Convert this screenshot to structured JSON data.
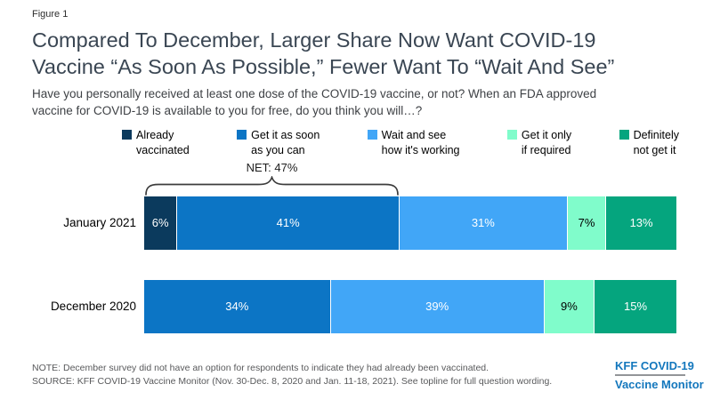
{
  "figure_label": "Figure 1",
  "title": {
    "lines": [
      "Compared To December, Larger Share Now Want COVID-19",
      "Vaccine “As Soon As Possible,” Fewer Want To “Wait And See”"
    ]
  },
  "subtitle": {
    "lines": [
      "Have you personally received at least one dose of the COVID-19 vaccine, or not? When an FDA approved",
      "vaccine for COVID-19 is available to you for free, do you think you will…?"
    ]
  },
  "colors": {
    "already_vaccinated": "#0b3a5d",
    "as_soon_as_possible": "#0c75c5",
    "wait_and_see": "#41a6f7",
    "only_if_required": "#80fccb",
    "definitely_not": "#05a57e",
    "title_text": "#3a4653",
    "note_text": "#58595b",
    "logo_blue": "#1377bd",
    "brace": "#3d3d3d"
  },
  "chart_data": {
    "type": "bar",
    "orientation": "horizontal_stacked",
    "value_unit": "percent",
    "axis_range": [
      0,
      100
    ],
    "grid": false,
    "legend_position": "top",
    "legend": [
      {
        "label": "Already\nvaccinated",
        "color": "#0b3a5d"
      },
      {
        "label": "Get it as soon\nas you can",
        "color": "#0c75c5"
      },
      {
        "label": "Wait and see\nhow it's working",
        "color": "#41a6f7"
      },
      {
        "label": "Get it only\nif required",
        "color": "#80fccb"
      },
      {
        "label": "Definitely\nnot get it",
        "color": "#05a57e"
      }
    ],
    "annotation": {
      "label": "NET: 47%",
      "row": "January 2021",
      "covers": [
        "Already vaccinated",
        "Get it as soon as you can"
      ]
    },
    "categories": [
      "January 2021",
      "December 2020"
    ],
    "rows": [
      {
        "label": "January 2021",
        "segments": [
          {
            "name": "Already vaccinated",
            "value": 6,
            "display": "6%",
            "color": "#0b3a5d",
            "text_color": "#ffffff"
          },
          {
            "name": "Get it as soon as you can",
            "value": 41,
            "display": "41%",
            "color": "#0c75c5",
            "text_color": "#ffffff"
          },
          {
            "name": "Wait and see how it's working",
            "value": 31,
            "display": "31%",
            "color": "#41a6f7",
            "text_color": "#ffffff"
          },
          {
            "name": "Get it only if required",
            "value": 7,
            "display": "7%",
            "color": "#80fccb",
            "text_color": "#000000"
          },
          {
            "name": "Definitely not get it",
            "value": 13,
            "display": "13%",
            "color": "#05a57e",
            "text_color": "#ffffff"
          }
        ]
      },
      {
        "label": "December 2020",
        "segments": [
          {
            "name": "Get it as soon as you can",
            "value": 34,
            "display": "34%",
            "color": "#0c75c5",
            "text_color": "#ffffff"
          },
          {
            "name": "Wait and see how it's working",
            "value": 39,
            "display": "39%",
            "color": "#41a6f7",
            "text_color": "#ffffff"
          },
          {
            "name": "Get it only if required",
            "value": 9,
            "display": "9%",
            "color": "#80fccb",
            "text_color": "#000000"
          },
          {
            "name": "Definitely not get it",
            "value": 15,
            "display": "15%",
            "color": "#05a57e",
            "text_color": "#ffffff"
          }
        ]
      }
    ]
  },
  "footer": {
    "note": "NOTE: December survey did not have an option for respondents to indicate they had already been vaccinated.",
    "source": "SOURCE: KFF COVID-19 Vaccine Monitor (Nov. 30-Dec. 8, 2020 and Jan. 11-18, 2021). See topline for full question wording.",
    "logo_line1": "KFF COVID-19",
    "logo_line2": "Vaccine Monitor"
  }
}
